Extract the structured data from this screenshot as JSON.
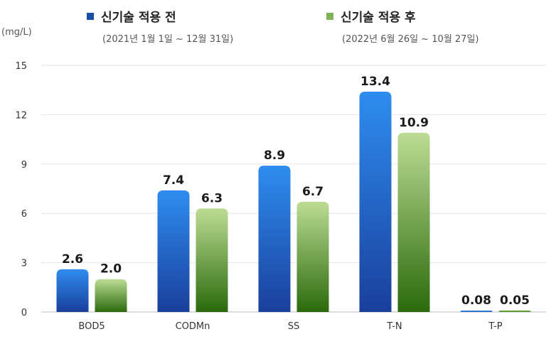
{
  "legend": [
    {
      "label": "신기술 적용 전",
      "period": "(2021년 1월 1일 ~ 12월 31일)",
      "color": "#1a4fa6"
    },
    {
      "label": "신기술 적용 후",
      "period": "(2022년 6월 26일 ~ 10월 27일)",
      "color": "#7fb256"
    }
  ],
  "chart_data": {
    "type": "bar",
    "ylabel": "(mg/L)",
    "ylim": [
      0,
      15
    ],
    "yticks": [
      0,
      3,
      6,
      9,
      12,
      15
    ],
    "categories": [
      "BOD5",
      "CODMn",
      "SS",
      "T-N",
      "T-P"
    ],
    "series": [
      {
        "name": "신기술 적용 전",
        "values": [
          2.6,
          7.4,
          8.9,
          13.4,
          0.08
        ],
        "labels": [
          "2.6",
          "7.4",
          "8.9",
          "13.4",
          "0.08"
        ]
      },
      {
        "name": "신기술 적용 후",
        "values": [
          2.0,
          6.3,
          6.7,
          10.9,
          0.05
        ],
        "labels": [
          "2.0",
          "6.3",
          "6.7",
          "10.9",
          "0.05"
        ]
      }
    ],
    "grid": true,
    "legend_position": "top"
  }
}
